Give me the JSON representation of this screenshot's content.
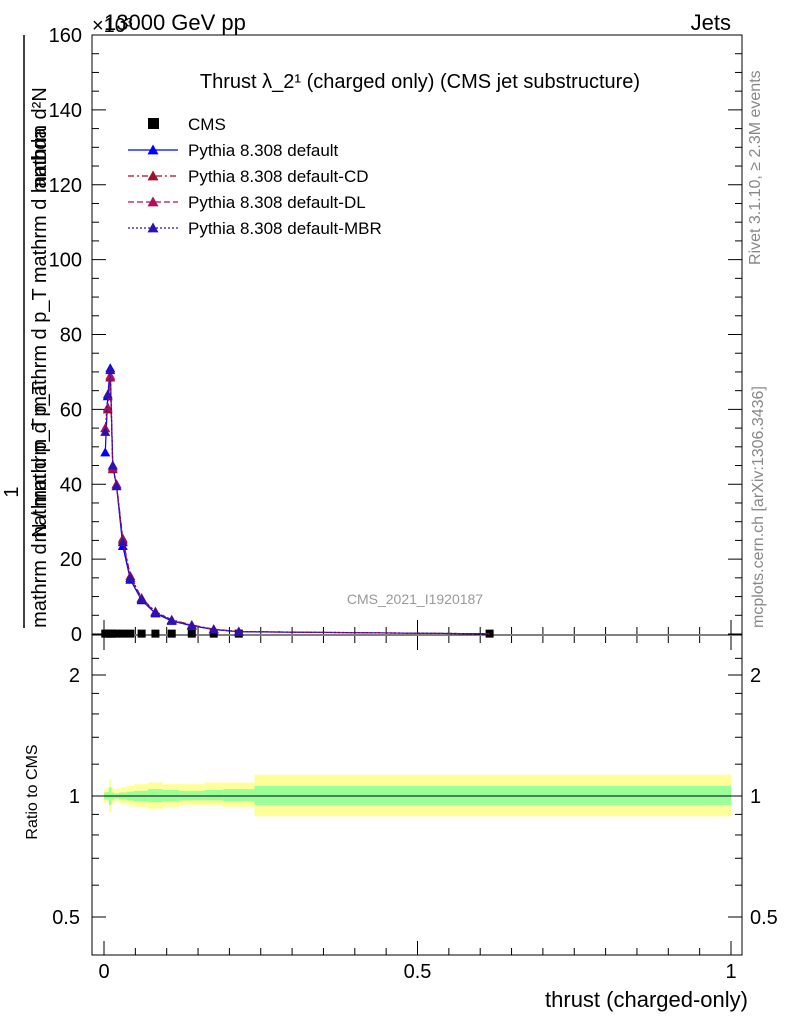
{
  "header": {
    "energy": "13000 GeV pp",
    "category": "Jets",
    "multiplier": "×10³"
  },
  "side_text": {
    "rivet": "Rivet 3.1.10, ≥ 2.3M events",
    "mcplots": "mcplots.cern.ch [arXiv:1306.3436]"
  },
  "chart_data": [
    {
      "type": "line",
      "panel": "main",
      "title": "Thrust λ_2¹ (charged only) (CMS jet substructure)",
      "watermark": "CMS_2021_I1920187",
      "ylabel_numerator": "mathrm d²N",
      "ylabel_denominator": "mathrm d p_T mathrm d p_T mathrm d lambda",
      "ylabel_prefix_num": "1",
      "ylabel_prefix_den": "mathrm d N / mathrm d p_T",
      "xlim": [
        0,
        1
      ],
      "ylim": [
        0,
        160
      ],
      "y_ticks": [
        0,
        20,
        40,
        60,
        80,
        100,
        120,
        140,
        160
      ],
      "y_tick_labels": [
        "0",
        "20",
        "40",
        "60",
        "80",
        "100",
        "120",
        "140",
        "160"
      ],
      "legend_position": "top-left",
      "series": [
        {
          "name": "CMS",
          "style": "markers",
          "color": "#000000",
          "x": [
            0.002,
            0.006,
            0.01,
            0.014,
            0.02,
            0.03,
            0.042,
            0.06,
            0.082,
            0.108,
            0.14,
            0.175,
            0.215,
            0.615
          ],
          "y": [
            0.1,
            0.1,
            0.1,
            0.1,
            0.1,
            0.1,
            0.1,
            0.1,
            0.1,
            0.1,
            0.1,
            0.1,
            0.1,
            0.1
          ]
        },
        {
          "name": "Pythia 8.308 default",
          "color": "#0000ff",
          "dash": "",
          "x": [
            0.002,
            0.006,
            0.01,
            0.014,
            0.02,
            0.03,
            0.042,
            0.06,
            0.082,
            0.108,
            0.14,
            0.175,
            0.215,
            0.615
          ],
          "y": [
            48.5,
            63.5,
            71.0,
            45.0,
            39.5,
            23.5,
            14.5,
            9.0,
            5.5,
            3.5,
            2.2,
            1.2,
            0.6,
            0.05
          ]
        },
        {
          "name": "Pythia 8.308 default-CD",
          "color": "#a0102a",
          "dash": "6,3,2,3",
          "x": [
            0.002,
            0.006,
            0.01,
            0.014,
            0.02,
            0.03,
            0.042,
            0.06,
            0.082,
            0.108,
            0.14,
            0.175,
            0.215,
            0.615
          ],
          "y": [
            55.0,
            60.0,
            68.5,
            44.0,
            40.0,
            25.5,
            15.5,
            9.6,
            6.0,
            3.8,
            2.4,
            1.3,
            0.65,
            0.05
          ]
        },
        {
          "name": "Pythia 8.308 default-DL",
          "color": "#b0105a",
          "dash": "6,3",
          "x": [
            0.002,
            0.006,
            0.01,
            0.014,
            0.02,
            0.03,
            0.042,
            0.06,
            0.082,
            0.108,
            0.14,
            0.175,
            0.215,
            0.615
          ],
          "y": [
            55.0,
            60.5,
            69.0,
            44.5,
            40.0,
            25.0,
            15.0,
            9.4,
            5.8,
            3.7,
            2.3,
            1.25,
            0.62,
            0.05
          ]
        },
        {
          "name": "Pythia 8.308 default-MBR",
          "color": "#3010b0",
          "dash": "2,2",
          "x": [
            0.002,
            0.006,
            0.01,
            0.014,
            0.02,
            0.03,
            0.042,
            0.06,
            0.082,
            0.108,
            0.14,
            0.175,
            0.215,
            0.615
          ],
          "y": [
            54.0,
            64.0,
            70.5,
            45.0,
            39.5,
            24.5,
            15.0,
            9.4,
            5.8,
            3.7,
            2.3,
            1.25,
            0.62,
            0.05
          ]
        }
      ]
    },
    {
      "type": "area",
      "panel": "ratio",
      "ylabel": "Ratio to CMS",
      "xlabel": "thrust (charged-only)",
      "xlim": [
        0,
        1
      ],
      "ylim": [
        0.4,
        2.4
      ],
      "log_y": true,
      "x_ticks": [
        0,
        0.5,
        1
      ],
      "x_tick_labels": [
        "0",
        "0.5",
        "1"
      ],
      "y_ticks": [
        0.5,
        1,
        2
      ],
      "y_tick_labels": [
        "0.5",
        "1",
        "2"
      ],
      "bands": [
        {
          "name": "outer",
          "color": "#ffff99",
          "edges": [
            0,
            0.004,
            0.008,
            0.012,
            0.016,
            0.024,
            0.036,
            0.048,
            0.07,
            0.094,
            0.12,
            0.16,
            0.19,
            0.24,
            1.0
          ],
          "lo": [
            0.96,
            0.97,
            0.91,
            0.96,
            0.97,
            0.96,
            0.95,
            0.94,
            0.93,
            0.94,
            0.95,
            0.95,
            0.94,
            0.89
          ],
          "hi": [
            1.04,
            1.05,
            1.1,
            1.05,
            1.04,
            1.05,
            1.06,
            1.07,
            1.08,
            1.07,
            1.07,
            1.08,
            1.08,
            1.13
          ]
        },
        {
          "name": "inner",
          "color": "#99ff99",
          "edges": [
            0,
            0.004,
            0.008,
            0.012,
            0.016,
            0.024,
            0.036,
            0.048,
            0.07,
            0.094,
            0.12,
            0.16,
            0.19,
            0.24,
            1.0
          ],
          "lo": [
            0.98,
            0.98,
            0.95,
            0.98,
            0.985,
            0.98,
            0.975,
            0.97,
            0.965,
            0.97,
            0.975,
            0.975,
            0.97,
            0.95
          ],
          "hi": [
            1.02,
            1.025,
            1.05,
            1.02,
            1.015,
            1.02,
            1.025,
            1.03,
            1.04,
            1.035,
            1.03,
            1.035,
            1.04,
            1.06
          ]
        }
      ],
      "reference_line": 1
    }
  ]
}
